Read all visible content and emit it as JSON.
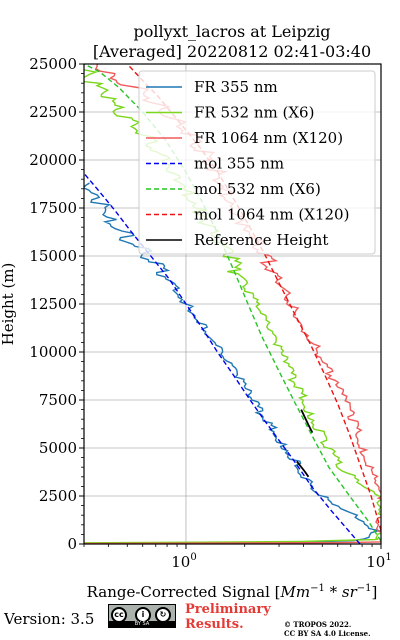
{
  "chart_data": {
    "type": "line",
    "title": "pollyxt_lacros at Leipzig",
    "subtitle": "[Averaged] 20220812 02:41-03:40",
    "xlabel": "Range-Corrected Signal [Mm$^{-1}$*sr$^{-1}$]",
    "xlabel_parts": {
      "prefix": "Range-Corrected Signal [",
      "a": "Mm",
      "sup1": "−1",
      "mid": " * ",
      "b": "sr",
      "sup2": "−1",
      "suffix": "]"
    },
    "ylabel": "Height (m)",
    "xscale": "log",
    "xlim": [
      0.3,
      10
    ],
    "ylim": [
      0,
      25000
    ],
    "grid": true,
    "legend_position": "top-right",
    "x_ticks": [
      {
        "value": 1,
        "label": "10",
        "exp": "0"
      },
      {
        "value": 10,
        "label": "10",
        "exp": "1"
      }
    ],
    "y_ticks": [
      {
        "value": 0,
        "label": "0"
      },
      {
        "value": 2500,
        "label": "2500"
      },
      {
        "value": 5000,
        "label": "5000"
      },
      {
        "value": 7500,
        "label": "7500"
      },
      {
        "value": 10000,
        "label": "10000"
      },
      {
        "value": 12500,
        "label": "12500"
      },
      {
        "value": 15000,
        "label": "15000"
      },
      {
        "value": 17500,
        "label": "17500"
      },
      {
        "value": 20000,
        "label": "20000"
      },
      {
        "value": 22500,
        "label": "22500"
      },
      {
        "value": 25000,
        "label": "25000"
      }
    ],
    "series": [
      {
        "name": "FR 355 nm",
        "color": "#1f77b4",
        "style": "solid",
        "points": [
          [
            0.4,
            25
          ],
          [
            3,
            40
          ],
          [
            7,
            180
          ],
          [
            9.2,
            350
          ],
          [
            9.2,
            700
          ],
          [
            7.5,
            1500
          ],
          [
            5.5,
            2200
          ],
          [
            4.4,
            3000
          ],
          [
            3.7,
            4200
          ],
          [
            3.1,
            5300
          ],
          [
            2.6,
            6400
          ],
          [
            2.2,
            7500
          ],
          [
            1.85,
            8700
          ],
          [
            1.5,
            10000
          ],
          [
            1.25,
            11300
          ],
          [
            1.0,
            12500
          ],
          [
            0.82,
            13800
          ],
          [
            0.68,
            14700
          ],
          [
            0.55,
            15500
          ],
          [
            0.48,
            16300
          ],
          [
            0.42,
            16900
          ],
          [
            0.38,
            17400
          ],
          [
            0.35,
            17800
          ],
          [
            0.33,
            18300
          ],
          [
            0.32,
            18800
          ]
        ]
      },
      {
        "name": "FR 532 nm (X6)",
        "color": "#7bd61c",
        "style": "solid",
        "points": [
          [
            0.3,
            60
          ],
          [
            4,
            130
          ],
          [
            9,
            230
          ],
          [
            10,
            280
          ],
          [
            10,
            2500
          ],
          [
            6.5,
            3800
          ],
          [
            5.1,
            5400
          ],
          [
            4.3,
            6900
          ],
          [
            3.7,
            8200
          ],
          [
            3.25,
            9500
          ],
          [
            2.9,
            10400
          ],
          [
            2.6,
            11300
          ],
          [
            2.3,
            12500
          ],
          [
            2.0,
            13500
          ],
          [
            1.8,
            14300
          ],
          [
            1.6,
            15200
          ],
          [
            1.4,
            16300
          ],
          [
            1.2,
            17400
          ],
          [
            1.05,
            18400
          ],
          [
            0.9,
            19300
          ],
          [
            0.75,
            20300
          ],
          [
            0.6,
            21300
          ],
          [
            0.48,
            22300
          ],
          [
            0.38,
            23300
          ],
          [
            0.32,
            24100
          ],
          [
            0.3,
            24700
          ]
        ]
      },
      {
        "name": "FR 1064 nm (X120)",
        "color": "#f05a5a",
        "style": "solid",
        "points": [
          [
            0.3,
            20
          ],
          [
            6,
            70
          ],
          [
            10,
            110
          ],
          [
            10,
            2500
          ],
          [
            9.3,
            3300
          ],
          [
            8.2,
            4900
          ],
          [
            7.2,
            6500
          ],
          [
            6.3,
            7700
          ],
          [
            5.4,
            9000
          ],
          [
            4.6,
            10300
          ],
          [
            4.0,
            11300
          ],
          [
            3.5,
            12400
          ],
          [
            3.1,
            13400
          ],
          [
            2.8,
            14200
          ],
          [
            2.5,
            15200
          ],
          [
            2.3,
            15900
          ],
          [
            2.05,
            16700
          ],
          [
            1.85,
            17500
          ],
          [
            1.6,
            18500
          ],
          [
            1.4,
            19500
          ],
          [
            1.2,
            20500
          ],
          [
            1.0,
            21400
          ],
          [
            0.85,
            22200
          ],
          [
            0.7,
            23000
          ],
          [
            0.55,
            23800
          ],
          [
            0.42,
            24500
          ],
          [
            0.35,
            25000
          ]
        ]
      },
      {
        "name": "mol 355 nm",
        "color": "#0000ee",
        "style": "dashed",
        "points": [
          [
            7.8,
            0
          ],
          [
            5.6,
            1700
          ],
          [
            4.4,
            3000
          ],
          [
            3.6,
            4300
          ],
          [
            3.0,
            5400
          ],
          [
            2.5,
            6500
          ],
          [
            2.1,
            7600
          ],
          [
            1.75,
            8800
          ],
          [
            1.45,
            10000
          ],
          [
            1.2,
            11300
          ],
          [
            1.0,
            12500
          ],
          [
            0.82,
            13800
          ],
          [
            0.66,
            15000
          ],
          [
            0.52,
            16300
          ],
          [
            0.43,
            17400
          ],
          [
            0.35,
            18500
          ],
          [
            0.3,
            19300
          ]
        ]
      },
      {
        "name": "mol 532 nm (X6)",
        "color": "#27c427",
        "style": "dashed",
        "points": [
          [
            10,
            150
          ],
          [
            8.6,
            1200
          ],
          [
            6.9,
            2500
          ],
          [
            5.4,
            4000
          ],
          [
            4.4,
            5700
          ],
          [
            3.6,
            7400
          ],
          [
            3.0,
            9000
          ],
          [
            2.45,
            10800
          ],
          [
            2.1,
            12400
          ],
          [
            1.75,
            14300
          ],
          [
            1.45,
            16200
          ],
          [
            1.2,
            17900
          ],
          [
            0.98,
            19500
          ],
          [
            0.79,
            21000
          ],
          [
            0.6,
            22500
          ],
          [
            0.45,
            23800
          ],
          [
            0.36,
            24600
          ],
          [
            0.3,
            25000
          ]
        ]
      },
      {
        "name": "mol 1064 nm (X120)",
        "color": "#ee1111",
        "style": "dashed",
        "points": [
          [
            10,
            700
          ],
          [
            8.9,
            2500
          ],
          [
            7.9,
            4000
          ],
          [
            6.9,
            5700
          ],
          [
            6.0,
            7300
          ],
          [
            5.1,
            8900
          ],
          [
            4.3,
            10500
          ],
          [
            3.6,
            12000
          ],
          [
            3.0,
            13600
          ],
          [
            2.5,
            15200
          ],
          [
            2.1,
            16600
          ],
          [
            1.75,
            18000
          ],
          [
            1.45,
            19400
          ],
          [
            1.15,
            20800
          ],
          [
            0.92,
            22000
          ],
          [
            0.72,
            23300
          ],
          [
            0.58,
            24300
          ],
          [
            0.5,
            25000
          ]
        ]
      },
      {
        "name": "Reference Height",
        "color": "#000000",
        "style": "solid",
        "segments": [
          {
            "points": [
              [
                3.7,
                4300
              ],
              [
                4.05,
                3800
              ],
              [
                4.25,
                3500
              ]
            ]
          },
          {
            "points": [
              [
                3.9,
                7000
              ],
              [
                4.25,
                6200
              ],
              [
                4.45,
                5800
              ]
            ]
          }
        ]
      }
    ]
  },
  "footer": {
    "version": "Version: 3.5",
    "preliminary_line1": "Preliminary",
    "preliminary_line2": "Results.",
    "copyright_line1": "© TROPOS 2022.",
    "copyright_line2": "CC BY SA 4.0 License.",
    "cc_badge_text": "BY  SA"
  }
}
